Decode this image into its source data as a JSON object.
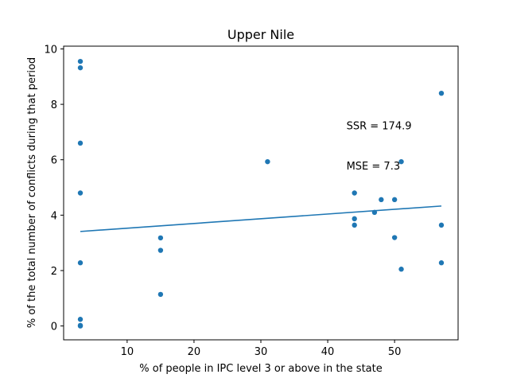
{
  "chart_data": {
    "type": "scatter",
    "title": "Upper Nile",
    "xlabel": "% of people in IPC level 3 or above in the state",
    "ylabel": "% of the total number of conflicts during that period",
    "xlim": [
      0.5,
      59.5
    ],
    "ylim": [
      -0.5,
      10.1
    ],
    "xticks": [
      10,
      20,
      30,
      40,
      50
    ],
    "yticks": [
      0,
      2,
      4,
      6,
      8,
      10
    ],
    "grid": false,
    "point_color": "#1f77b4",
    "line_color": "#1f77b4",
    "points": [
      {
        "x": 3,
        "y": 9.55
      },
      {
        "x": 3,
        "y": 9.32
      },
      {
        "x": 3,
        "y": 6.6
      },
      {
        "x": 3,
        "y": 4.8
      },
      {
        "x": 3,
        "y": 2.28
      },
      {
        "x": 3,
        "y": 0.24
      },
      {
        "x": 3,
        "y": 0.02
      },
      {
        "x": 3,
        "y": 0.0
      },
      {
        "x": 15,
        "y": 3.18
      },
      {
        "x": 15,
        "y": 2.73
      },
      {
        "x": 15,
        "y": 1.14
      },
      {
        "x": 31,
        "y": 5.93
      },
      {
        "x": 44,
        "y": 4.8
      },
      {
        "x": 44,
        "y": 3.87
      },
      {
        "x": 44,
        "y": 3.64
      },
      {
        "x": 47,
        "y": 4.1
      },
      {
        "x": 48,
        "y": 4.56
      },
      {
        "x": 50,
        "y": 4.56
      },
      {
        "x": 50,
        "y": 3.19
      },
      {
        "x": 51,
        "y": 5.93
      },
      {
        "x": 51,
        "y": 2.05
      },
      {
        "x": 57,
        "y": 8.4
      },
      {
        "x": 57,
        "y": 3.64
      },
      {
        "x": 57,
        "y": 2.28
      }
    ],
    "fit_line": {
      "x": [
        3,
        57
      ],
      "y": [
        3.41,
        4.33
      ]
    },
    "annotations": [
      {
        "text": "SSR = 174.9",
        "x": 42.8,
        "y": 7.1
      },
      {
        "text": "MSE = 7.3",
        "x": 42.8,
        "y": 5.65
      }
    ]
  }
}
